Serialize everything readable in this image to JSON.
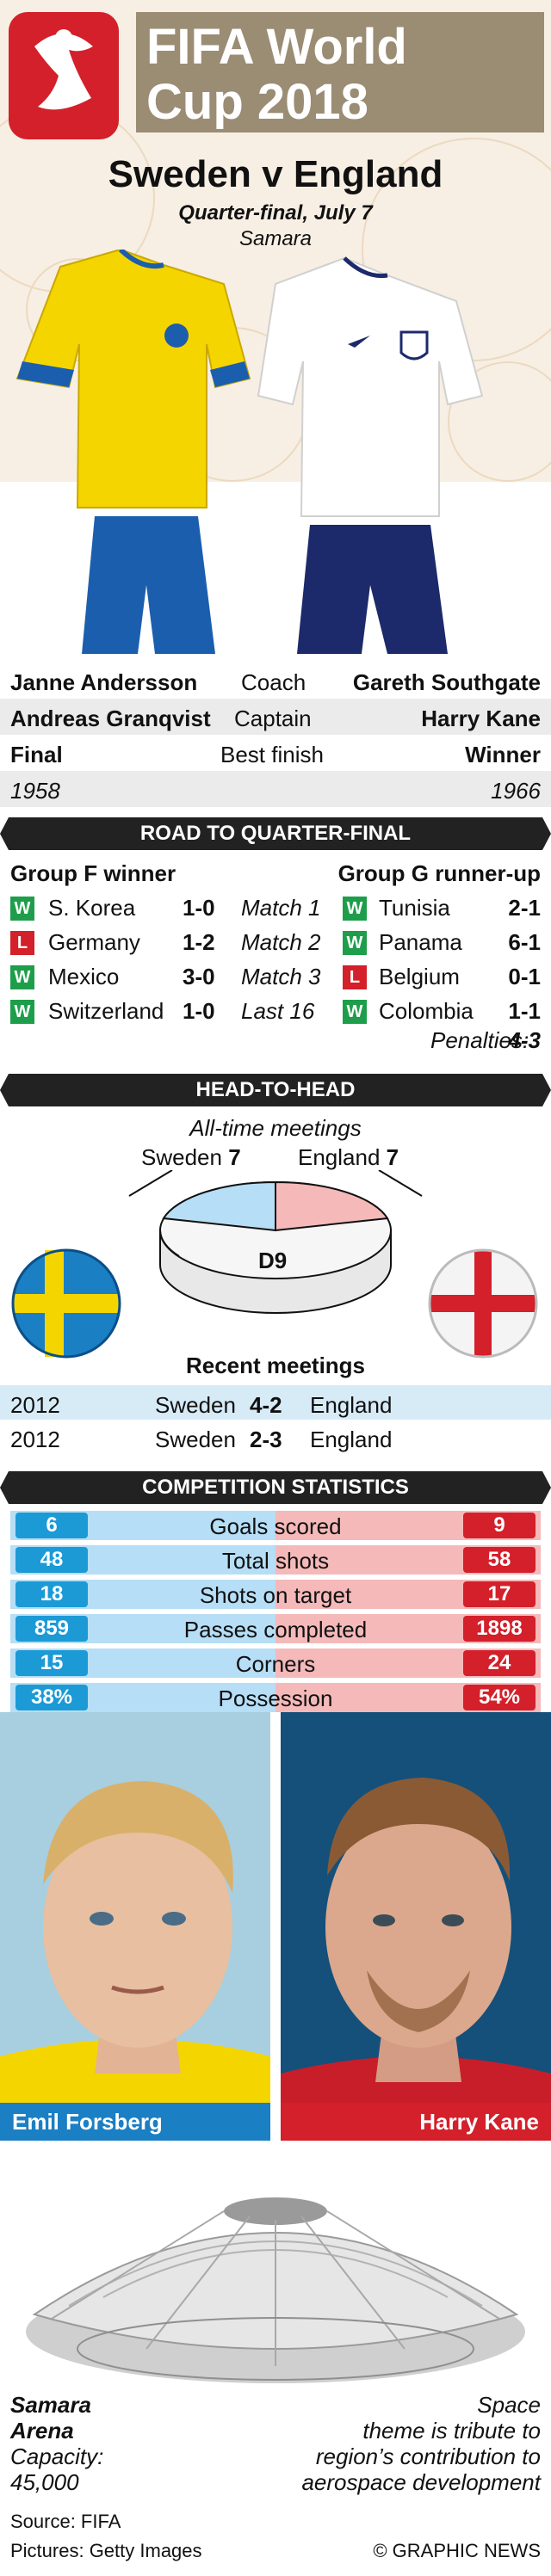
{
  "header": {
    "title_line1": "FIFA World",
    "title_line2": "Cup 2018",
    "match": "Sweden v England",
    "round": "Quarter-final, July 7",
    "city": "Samara"
  },
  "colors": {
    "sweden_blue": "#1b9ad6",
    "england_red": "#d3202a",
    "win_green": "#1e9e4a"
  },
  "teams": {
    "left": {
      "name": "Sweden",
      "coach": "Janne Andersson",
      "captain": "Andreas Granqvist",
      "best_finish": "Final",
      "best_year": "1958"
    },
    "right": {
      "name": "England",
      "coach": "Gareth Southgate",
      "captain": "Harry Kane",
      "best_finish": "Winner",
      "best_year": "1966"
    },
    "label_coach": "Coach",
    "label_captain": "Captain",
    "label_best": "Best finish"
  },
  "road": {
    "title": "ROAD TO QUARTER-FINAL",
    "left_head": "Group F winner",
    "right_head": "Group G runner-up",
    "left": [
      {
        "r": "W",
        "opp": "S. Korea",
        "score": "1-0"
      },
      {
        "r": "L",
        "opp": "Germany",
        "score": "1-2"
      },
      {
        "r": "W",
        "opp": "Mexico",
        "score": "3-0"
      },
      {
        "r": "W",
        "opp": "Switzerland",
        "score": "1-0"
      }
    ],
    "stages": [
      "Match 1",
      "Match 2",
      "Match 3",
      "Last 16"
    ],
    "right": [
      {
        "r": "W",
        "opp": "Tunisia",
        "score": "2-1"
      },
      {
        "r": "W",
        "opp": "Panama",
        "score": "6-1"
      },
      {
        "r": "L",
        "opp": "Belgium",
        "score": "0-1"
      },
      {
        "r": "W",
        "opp": "Colombia",
        "score": "1-1"
      }
    ],
    "penalties_label": "Penalties:",
    "penalties_score": "4-3"
  },
  "h2h": {
    "title": "HEAD-TO-HEAD",
    "subtitle": "All-time meetings",
    "sweden_label": "Sweden",
    "sweden_wins": "7",
    "england_label": "England",
    "england_wins": "7",
    "draws": "D9",
    "recent_title": "Recent meetings",
    "recent": [
      {
        "year": "2012",
        "home": "Sweden",
        "score": "4-2",
        "away": "England"
      },
      {
        "year": "2012",
        "home": "Sweden",
        "score": "2-3",
        "away": "England"
      }
    ]
  },
  "stats": {
    "title": "COMPETITION STATISTICS",
    "rows": [
      {
        "label": "Goals scored",
        "left": "6",
        "right": "9"
      },
      {
        "label": "Total shots",
        "left": "48",
        "right": "58"
      },
      {
        "label": "Shots on target",
        "left": "18",
        "right": "17"
      },
      {
        "label": "Passes completed",
        "left": "859",
        "right": "1898"
      },
      {
        "label": "Corners",
        "left": "15",
        "right": "24"
      },
      {
        "label": "Possession",
        "left": "38%",
        "right": "54%"
      }
    ]
  },
  "players": {
    "left": "Emil Forsberg",
    "right": "Harry Kane"
  },
  "stadium": {
    "name1": "Samara",
    "name2": "Arena",
    "capacity_label": "Capacity:",
    "capacity": "45,000",
    "note1": "Space",
    "note2": "theme is tribute to",
    "note3": "region’s contribution to",
    "note4": "aerospace development"
  },
  "footer": {
    "source": "Source: FIFA",
    "pictures": "Pictures: Getty Images",
    "credit": "© GRAPHIC NEWS"
  }
}
